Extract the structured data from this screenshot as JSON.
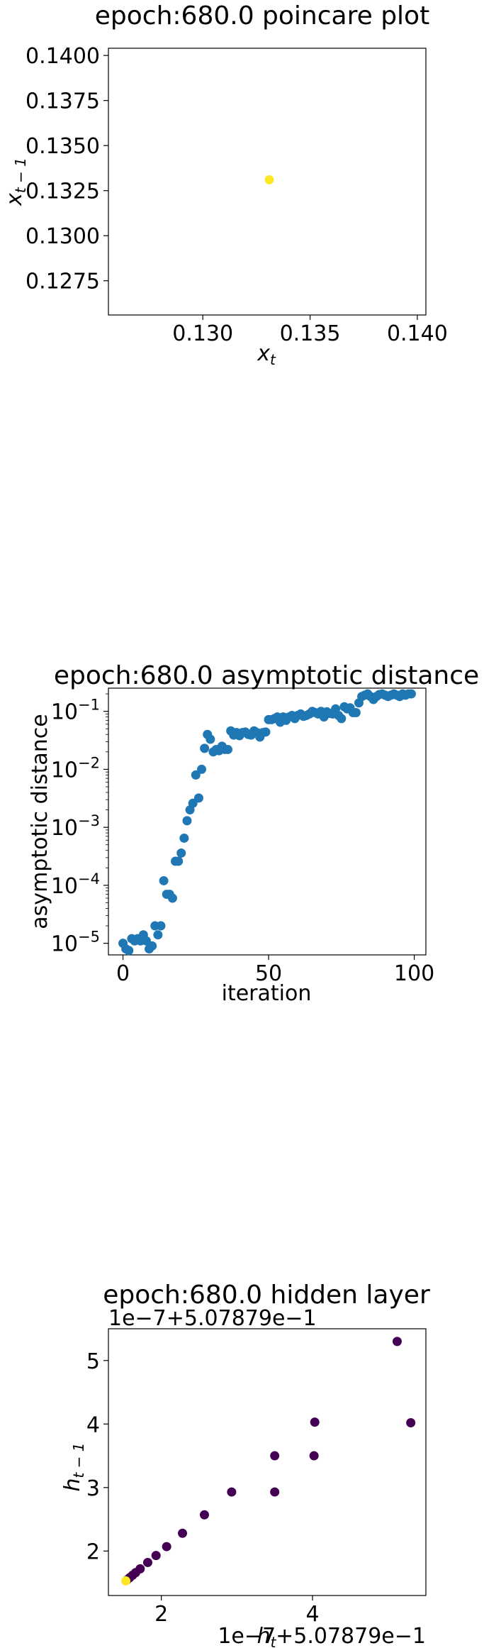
{
  "chart_data": [
    {
      "type": "scatter",
      "title": "epoch:680.0 poincare plot",
      "xlabel_main": "x",
      "xlabel_sub": "t",
      "ylabel_main": "x",
      "ylabel_sub": "t − 1",
      "xlim": [
        0.1256,
        0.1404
      ],
      "ylim": [
        0.1256,
        0.1404
      ],
      "xticks": [
        0.13,
        0.135,
        0.14
      ],
      "xtick_labels": [
        "0.130",
        "0.135",
        "0.140"
      ],
      "yticks": [
        0.1275,
        0.13,
        0.1325,
        0.135,
        0.1375,
        0.14
      ],
      "ytick_labels": [
        "0.1275",
        "0.1300",
        "0.1325",
        "0.1350",
        "0.1375",
        "0.1400"
      ],
      "points": [
        {
          "x": 0.1331,
          "y": 0.1331
        }
      ],
      "point_color": "#fde725"
    },
    {
      "type": "scatter",
      "title": "epoch:680.0 asymptotic distance",
      "xlabel": "iteration",
      "ylabel": "asymptotic distance",
      "yscale": "log",
      "xlim": [
        -5,
        104
      ],
      "ylim_log10": [
        -5.2,
        -0.6
      ],
      "xticks": [
        0,
        50,
        100
      ],
      "xtick_labels": [
        "0",
        "50",
        "100"
      ],
      "yticks_exp": [
        -5,
        -4,
        -3,
        -2,
        -1
      ],
      "point_color": "#1f77b4",
      "x": [
        0,
        1,
        2,
        3,
        4,
        5,
        6,
        7,
        8,
        9,
        10,
        11,
        12,
        13,
        14,
        15,
        16,
        17,
        18,
        19,
        20,
        21,
        22,
        23,
        24,
        25,
        26,
        27,
        28,
        29,
        30,
        31,
        32,
        33,
        34,
        35,
        36,
        37,
        38,
        39,
        40,
        41,
        42,
        43,
        44,
        45,
        46,
        47,
        48,
        49,
        50,
        51,
        52,
        53,
        54,
        55,
        56,
        57,
        58,
        59,
        60,
        61,
        62,
        63,
        64,
        65,
        66,
        67,
        68,
        69,
        70,
        71,
        72,
        73,
        74,
        75,
        76,
        77,
        78,
        79,
        80,
        81,
        82,
        83,
        84,
        85,
        86,
        87,
        88,
        89,
        90,
        91,
        92,
        93,
        94,
        95,
        96,
        97,
        98,
        99
      ],
      "y": [
        1e-05,
        8e-06,
        7.5e-06,
        1.2e-05,
        1.1e-05,
        1.2e-05,
        1.1e-05,
        1.4e-05,
        1.1e-05,
        8e-06,
        9e-06,
        2e-05,
        1.4e-05,
        2e-05,
        0.00012,
        7e-05,
        7e-05,
        6e-05,
        0.00026,
        0.00026,
        0.00036,
        0.00065,
        0.0013,
        0.002,
        0.0026,
        0.008,
        0.0032,
        0.01,
        0.023,
        0.04,
        0.033,
        0.02,
        0.022,
        0.021,
        0.025,
        0.022,
        0.022,
        0.046,
        0.039,
        0.043,
        0.038,
        0.043,
        0.044,
        0.04,
        0.039,
        0.046,
        0.043,
        0.036,
        0.043,
        0.044,
        0.072,
        0.072,
        0.075,
        0.08,
        0.065,
        0.08,
        0.07,
        0.08,
        0.085,
        0.075,
        0.085,
        0.09,
        0.082,
        0.085,
        0.09,
        0.1,
        0.095,
        0.09,
        0.1,
        0.08,
        0.098,
        0.092,
        0.09,
        0.11,
        0.085,
        0.075,
        0.12,
        0.11,
        0.115,
        0.095,
        0.095,
        0.14,
        0.18,
        0.19,
        0.2,
        0.18,
        0.16,
        0.18,
        0.195,
        0.2,
        0.19,
        0.18,
        0.19,
        0.2,
        0.19,
        0.18,
        0.2,
        0.19,
        0.2,
        0.2
      ]
    },
    {
      "type": "scatter",
      "title": "epoch:680.0 hidden layer",
      "xlabel_main": "h",
      "xlabel_sub": "t",
      "ylabel_main": "h",
      "ylabel_sub": "t − 1",
      "x_offset_label": "1e−7+5.07879e−1",
      "y_offset_label": "1e−7+5.07879e−1",
      "xlim": [
        1.3,
        5.5
      ],
      "ylim": [
        1.3,
        5.5
      ],
      "xticks": [
        2,
        4
      ],
      "xtick_labels": [
        "2",
        "4"
      ],
      "yticks": [
        2,
        3,
        4,
        5
      ],
      "ytick_labels": [
        "2",
        "3",
        "4",
        "5"
      ],
      "colormap": "viridis",
      "color_start": "#fde725",
      "color_other": "#440154",
      "color_mid": "#3b528b",
      "points": [
        {
          "x": 1.53,
          "y": 1.53,
          "c": "#fde725"
        },
        {
          "x": 1.58,
          "y": 1.58,
          "c": "#440154"
        },
        {
          "x": 1.62,
          "y": 1.62,
          "c": "#440154"
        },
        {
          "x": 1.66,
          "y": 1.66,
          "c": "#440154"
        },
        {
          "x": 1.72,
          "y": 1.72,
          "c": "#440154"
        },
        {
          "x": 1.82,
          "y": 1.82,
          "c": "#440154"
        },
        {
          "x": 1.93,
          "y": 1.93,
          "c": "#440154"
        },
        {
          "x": 2.07,
          "y": 2.07,
          "c": "#440154"
        },
        {
          "x": 2.28,
          "y": 2.28,
          "c": "#440154"
        },
        {
          "x": 2.57,
          "y": 2.57,
          "c": "#440154"
        },
        {
          "x": 2.93,
          "y": 2.93,
          "c": "#440154"
        },
        {
          "x": 3.5,
          "y": 3.5,
          "c": "#440154"
        },
        {
          "x": 4.03,
          "y": 4.03,
          "c": "#440154"
        },
        {
          "x": 5.3,
          "y": 5.3,
          "c": "#440154"
        },
        {
          "x": 1.55,
          "y": 1.55,
          "c": "#3b528b"
        }
      ],
      "points_extra": [
        {
          "x": 4.02,
          "y": 3.5
        },
        {
          "x": 5.12,
          "y": 5.3
        },
        {
          "x": 5.3,
          "y": 4.02
        },
        {
          "x": 3.5,
          "y": 2.93
        }
      ]
    }
  ]
}
